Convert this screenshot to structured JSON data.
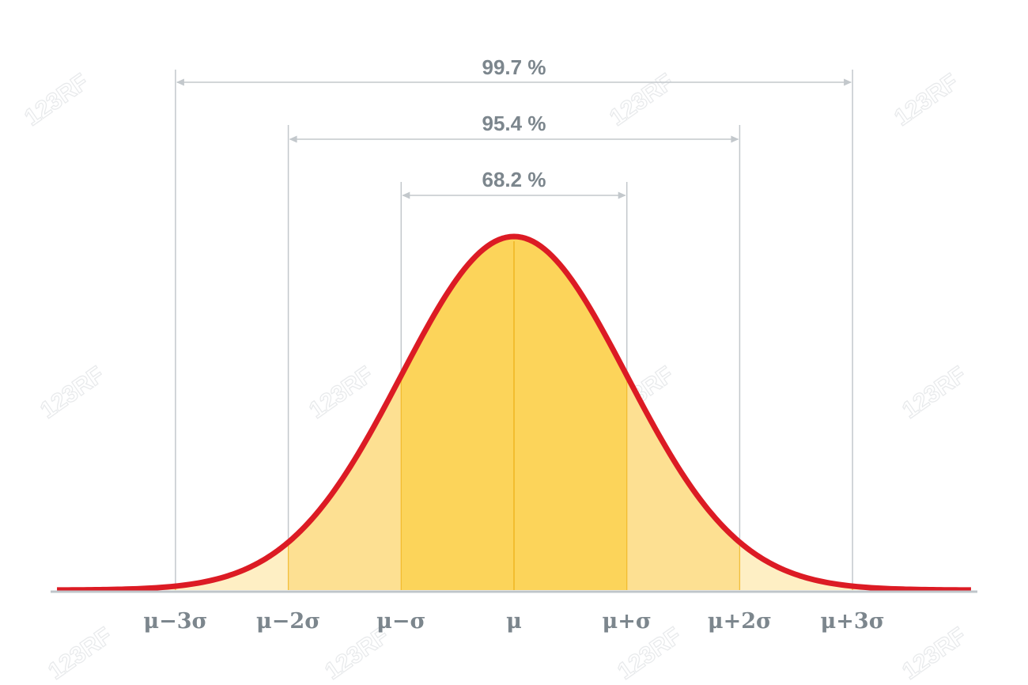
{
  "watermark": "123RF",
  "chart_data": {
    "type": "area",
    "title": "",
    "xlabel": "",
    "ylabel": "",
    "distribution": "normal",
    "mean": 0,
    "sd": 1,
    "xlim": [
      -4.05,
      4.05
    ],
    "ticks": [
      {
        "value": -3,
        "label": "μ−3σ"
      },
      {
        "value": -2,
        "label": "μ−2σ"
      },
      {
        "value": -1,
        "label": "μ−σ"
      },
      {
        "value": 0,
        "label": "μ"
      },
      {
        "value": 1,
        "label": "μ+σ"
      },
      {
        "value": 2,
        "label": "μ+2σ"
      },
      {
        "value": 3,
        "label": "μ+3σ"
      }
    ],
    "intervals": [
      {
        "from": -3,
        "to": 3,
        "label": "99.7 %"
      },
      {
        "from": -2,
        "to": 2,
        "label": "95.4 %"
      },
      {
        "from": -1,
        "to": 1,
        "label": "68.2 %"
      }
    ],
    "colors": {
      "curve": "#dc1b24",
      "band_1sigma": "#fcd45a",
      "band_2sigma": "#fde092",
      "band_3sigma": "#feefc4",
      "lines": "#c3c8cc",
      "axis": "#bfc5ca",
      "text": "#7c868d",
      "center_line": "#efb521"
    }
  }
}
